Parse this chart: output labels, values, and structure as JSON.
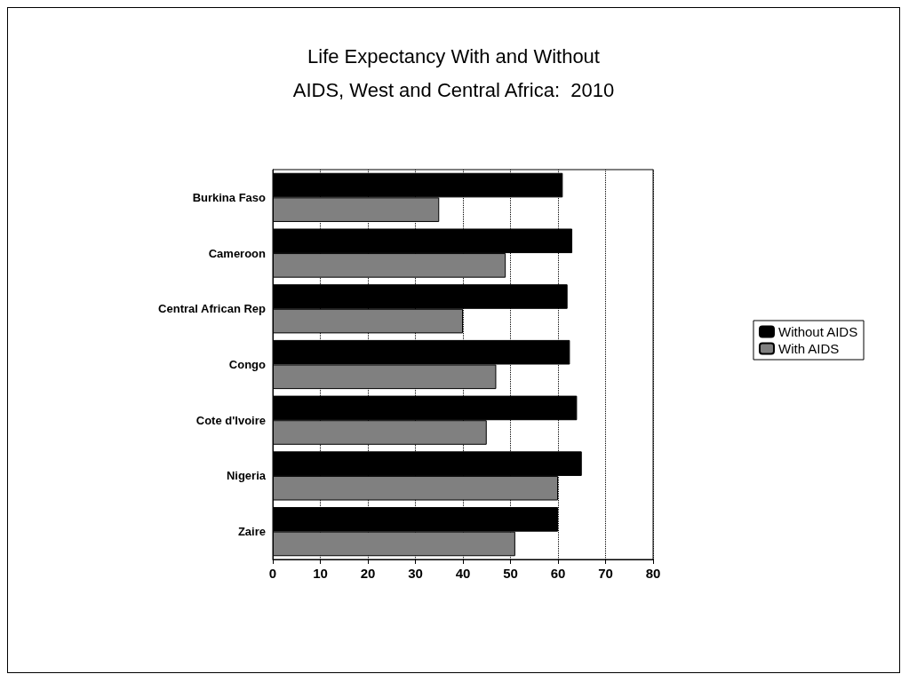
{
  "chart_data": {
    "type": "bar",
    "orientation": "horizontal",
    "title": "Life Expectancy With and Without\nAIDS, West and Central Africa:  2010",
    "categories": [
      "Burkina Faso",
      "Cameroon",
      "Central African Rep",
      "Congo",
      "Cote d'Ivoire",
      "Nigeria",
      "Zaire"
    ],
    "series": [
      {
        "name": "Without AIDS",
        "color": "#000000",
        "values": [
          61,
          63,
          62,
          62.5,
          64,
          65,
          60
        ]
      },
      {
        "name": "With AIDS",
        "color": "#808080",
        "values": [
          35,
          49,
          40,
          47,
          45,
          60,
          51
        ]
      }
    ],
    "xlim": [
      0,
      80
    ],
    "xticks": [
      0,
      10,
      20,
      30,
      40,
      50,
      60,
      70,
      80
    ],
    "grid": "x",
    "legend": "right"
  }
}
